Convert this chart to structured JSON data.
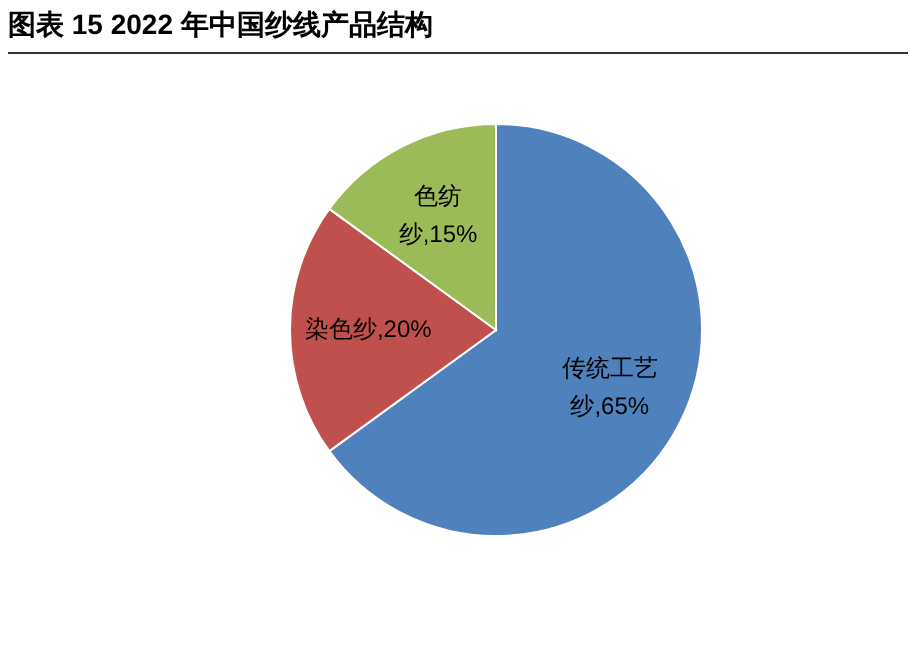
{
  "chart_data": {
    "type": "pie",
    "title": "图表 15 2022 年中国纱线产品结构",
    "categories": [
      "传统工艺纱",
      "染色纱",
      "色纺纱"
    ],
    "values": [
      65,
      20,
      15
    ],
    "colors": [
      "#4f81bd",
      "#c0504d",
      "#9bbb59"
    ],
    "value_labels": [
      ",65%",
      ",20%",
      ",15%"
    ]
  }
}
